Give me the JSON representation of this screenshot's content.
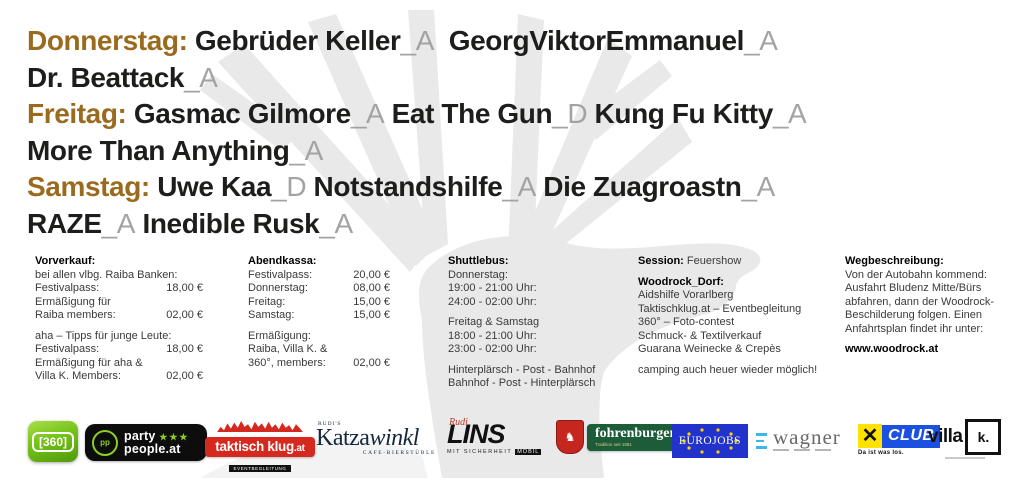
{
  "colors": {
    "day_label": "#9a6b1f",
    "band_name": "#1d1d1b",
    "stage_tag": "#a3a3a3",
    "watermark": "#e9e9e9",
    "logo_green": "#8ccf1f",
    "logo_red": "#d5281e",
    "logo_brewery_green": "#1d5c38",
    "logo_eu_blue": "#2233cc",
    "logo_club_blue": "#1c50e0",
    "logo_raiffeisen_yellow": "#ffe200"
  },
  "lineup": {
    "lines": [
      {
        "segments": [
          {
            "t": "Donnerstag: ",
            "k": "day"
          },
          {
            "t": "Gebrüder Keller",
            "k": "band"
          },
          {
            "t": "_A",
            "k": "tag"
          },
          {
            "t": "  ",
            "k": "band"
          },
          {
            "t": "GeorgViktorEmmanuel",
            "k": "band"
          },
          {
            "t": "_A",
            "k": "tag"
          }
        ]
      },
      {
        "segments": [
          {
            "t": "Dr. Beattack",
            "k": "band"
          },
          {
            "t": "_A",
            "k": "tag"
          }
        ]
      },
      {
        "segments": [
          {
            "t": "Freitag: ",
            "k": "day"
          },
          {
            "t": "Gasmac Gilmore",
            "k": "band"
          },
          {
            "t": "_A",
            "k": "tag"
          },
          {
            "t": " ",
            "k": "band"
          },
          {
            "t": "Eat The Gun",
            "k": "band"
          },
          {
            "t": "_D",
            "k": "tag"
          },
          {
            "t": " ",
            "k": "band"
          },
          {
            "t": "Kung Fu Kitty",
            "k": "band"
          },
          {
            "t": "_A",
            "k": "tag"
          }
        ]
      },
      {
        "segments": [
          {
            "t": "More Than Anything",
            "k": "band"
          },
          {
            "t": "_A",
            "k": "tag"
          }
        ]
      },
      {
        "segments": [
          {
            "t": "Samstag: ",
            "k": "day"
          },
          {
            "t": "Uwe Kaa",
            "k": "band"
          },
          {
            "t": "_D",
            "k": "tag"
          },
          {
            "t": " ",
            "k": "band"
          },
          {
            "t": "Notstandshilfe",
            "k": "band"
          },
          {
            "t": "_A",
            "k": "tag"
          },
          {
            "t": " ",
            "k": "band"
          },
          {
            "t": "Die Zuagroastn",
            "k": "band"
          },
          {
            "t": "_A",
            "k": "tag"
          }
        ]
      },
      {
        "segments": [
          {
            "t": "RAZE",
            "k": "band"
          },
          {
            "t": "_A",
            "k": "tag"
          },
          {
            "t": " ",
            "k": "band"
          },
          {
            "t": "Inedible Rusk",
            "k": "band"
          },
          {
            "t": "_A",
            "k": "tag"
          }
        ]
      }
    ]
  },
  "info_columns": [
    {
      "title_bold": "Vorverkauf:",
      "title_rest": "",
      "rows": [
        {
          "label": "bei allen vlbg. Raiba Banken:"
        },
        {
          "label": "Festivalpass:",
          "value": "18,00 €"
        },
        {
          "label": "Ermäßigung für"
        },
        {
          "label": "Raiba members:",
          "value": "02,00 €"
        },
        {
          "spacer": true
        },
        {
          "label": "aha – Tipps für junge Leute:"
        },
        {
          "label": "Festivalpass:",
          "value": "18,00 €"
        },
        {
          "label": "Ermäßigung für aha &"
        },
        {
          "label": "Villa K. Members:",
          "value": "02,00 €"
        }
      ]
    },
    {
      "title_bold": "Abendkassa:",
      "title_rest": "",
      "rows": [
        {
          "label": "Festivalpass:",
          "value": "20,00 €"
        },
        {
          "label": "Donnerstag:",
          "value": "08,00 €"
        },
        {
          "label": "Freitag:",
          "value": "15,00 €"
        },
        {
          "label": "Samstag:",
          "value": "15,00 €"
        },
        {
          "spacer": true
        },
        {
          "label": "Ermäßigung:"
        },
        {
          "label": "Raiba, Villa K. &"
        },
        {
          "label": "360°, members:",
          "value": "02,00 €"
        }
      ]
    },
    {
      "title_bold": "Shuttlebus:",
      "title_rest": "",
      "rows": [
        {
          "label": "Donnerstag:"
        },
        {
          "label": "19:00 - 21:00 Uhr:"
        },
        {
          "label": "24:00 - 02:00 Uhr:"
        },
        {
          "spacer": true
        },
        {
          "label": "Freitag & Samstag"
        },
        {
          "label": "18:00 - 21:00 Uhr:"
        },
        {
          "label": "23:00 - 02:00 Uhr:"
        },
        {
          "spacer": true
        },
        {
          "label": "Hinterplärsch - Post - Bahnhof"
        },
        {
          "label": "Bahnhof - Post - Hinterplärsch"
        }
      ]
    },
    {
      "title_bold": "Session:",
      "title_rest": " Feuershow",
      "rows": [
        {
          "spacer": true
        },
        {
          "label": "Woodrock_Dorf:",
          "bold": true
        },
        {
          "label": "Aidshilfe Vorarlberg"
        },
        {
          "label": "Taktischklug.at – Eventbegleitung"
        },
        {
          "label": "360° – Foto-contest"
        },
        {
          "label": "Schmuck- & Textilverkauf"
        },
        {
          "label": "Guarana Weinecke & Crepès"
        },
        {
          "spacer": true
        },
        {
          "label": "camping auch heuer wieder möglich!"
        }
      ]
    },
    {
      "title_bold": "Wegbeschreibung:",
      "title_rest": "",
      "rows": [
        {
          "label": "Von der Autobahn kommend:"
        },
        {
          "label": "Ausfahrt Bludenz Mitte/Bürs"
        },
        {
          "label": "abfahren, dann der Woodrock-"
        },
        {
          "label": "Beschilderung folgen. Einen"
        },
        {
          "label": "Anfahrtsplan findet ihr unter:"
        },
        {
          "spacer": true
        },
        {
          "label": "www.woodrock.at",
          "bold": true
        }
      ]
    }
  ],
  "logos": {
    "l360": {
      "text": "[360]"
    },
    "partypeople": {
      "badge": "pp",
      "line1": "party",
      "stars": "★★★",
      "line2": "people.at"
    },
    "taktisch": {
      "main": "taktisch klug",
      "suffix": ".at",
      "sub": "EVENTBEGLEITUNG"
    },
    "katzawinkl": {
      "pre": "RUDI'S",
      "main1": "Katza",
      "main2": "winkl",
      "sub": "CAFE-BIERSTÜBLE"
    },
    "lins": {
      "script": "Rudi",
      "main": "LINS",
      "sub": "MIT SICHERHEIT",
      "sub2": "MOBIL"
    },
    "fohrenburger": {
      "crest": "♞",
      "main": "fohrenburger",
      "sub": "Tradition seit 1881"
    },
    "eurojobs": {
      "main": "EUROJOBS"
    },
    "wagner": {
      "main": "wagner"
    },
    "xclub": {
      "x": "✕",
      "main": "CLUB",
      "sub": "Da ist was los."
    },
    "villak": {
      "main": "villa",
      "box": "k."
    }
  }
}
